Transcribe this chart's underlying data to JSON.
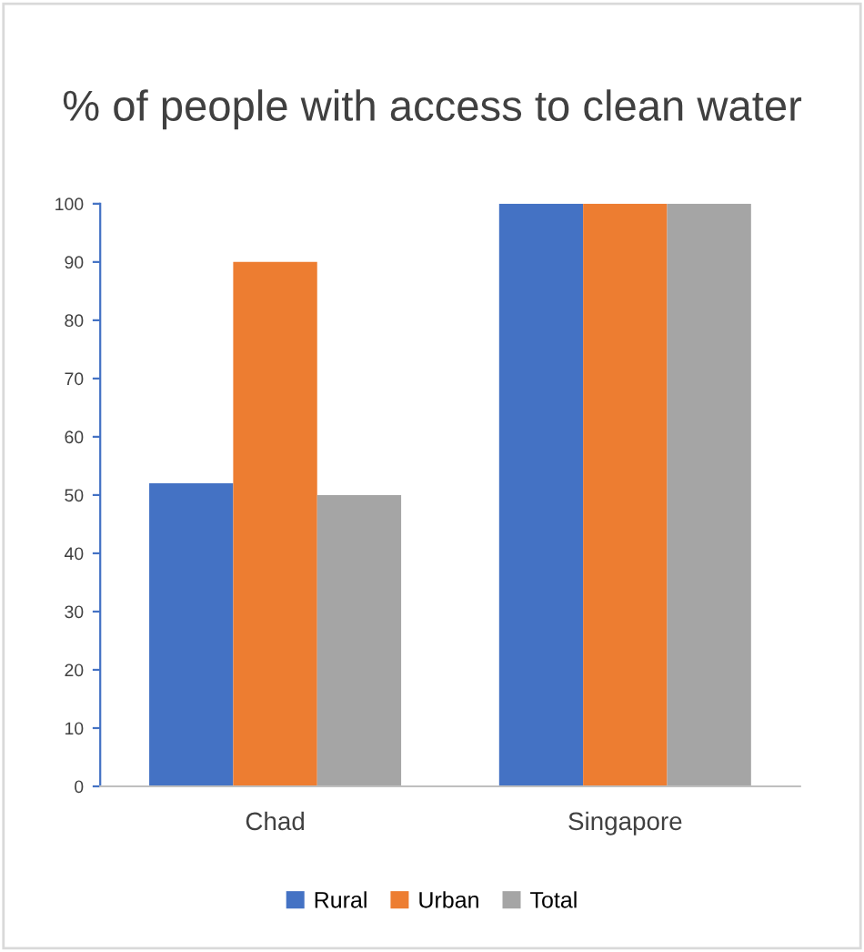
{
  "chart_data": {
    "type": "bar",
    "title": "% of people with access to clean water",
    "categories": [
      "Chad",
      "Singapore"
    ],
    "series": [
      {
        "name": "Rural",
        "color": "#4472c4",
        "values": [
          52,
          100
        ]
      },
      {
        "name": "Urban",
        "color": "#ed7d31",
        "values": [
          90,
          100
        ]
      },
      {
        "name": "Total",
        "color": "#a5a5a5",
        "values": [
          50,
          100
        ]
      }
    ],
    "ylim": [
      0,
      100
    ],
    "yticks": [
      0,
      10,
      20,
      30,
      40,
      50,
      60,
      70,
      80,
      90,
      100
    ],
    "grid": false,
    "legend": "bottom"
  }
}
